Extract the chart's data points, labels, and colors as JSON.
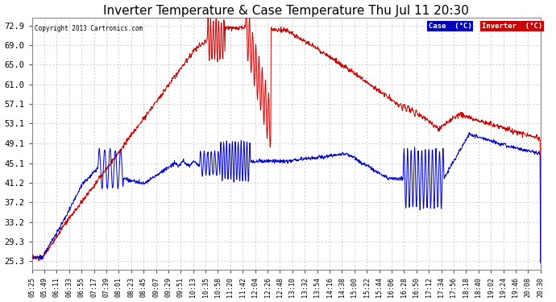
{
  "title": "Inverter Temperature & Case Temperature Thu Jul 11 20:30",
  "copyright": "Copyright 2013 Cartronics.com",
  "yticks": [
    25.3,
    29.3,
    33.2,
    37.2,
    41.2,
    45.1,
    49.1,
    53.1,
    57.1,
    61.0,
    65.0,
    69.0,
    72.9
  ],
  "ylim": [
    23.5,
    74.5
  ],
  "legend_labels": [
    "Case  (°C)",
    "Inverter  (°C)"
  ],
  "legend_bg_colors": [
    "#0000bb",
    "#cc0000"
  ],
  "case_color": "#0000cc",
  "inverter_color": "#cc0000",
  "bg_color": "#ffffff",
  "grid_color": "#bbbbbb",
  "title_fontsize": 11,
  "xlabel_fontsize": 6,
  "ylabel_fontsize": 7.5,
  "xtick_labels": [
    "05:25",
    "05:49",
    "06:11",
    "06:33",
    "06:55",
    "07:17",
    "07:39",
    "08:01",
    "08:23",
    "08:45",
    "09:07",
    "09:29",
    "09:51",
    "10:13",
    "10:35",
    "10:58",
    "11:20",
    "11:42",
    "12:04",
    "12:26",
    "12:48",
    "13:10",
    "13:32",
    "13:54",
    "14:16",
    "14:38",
    "15:00",
    "15:22",
    "15:44",
    "16:06",
    "16:28",
    "16:50",
    "17:12",
    "17:34",
    "17:56",
    "18:18",
    "18:40",
    "19:02",
    "19:24",
    "19:46",
    "20:08",
    "20:30"
  ]
}
